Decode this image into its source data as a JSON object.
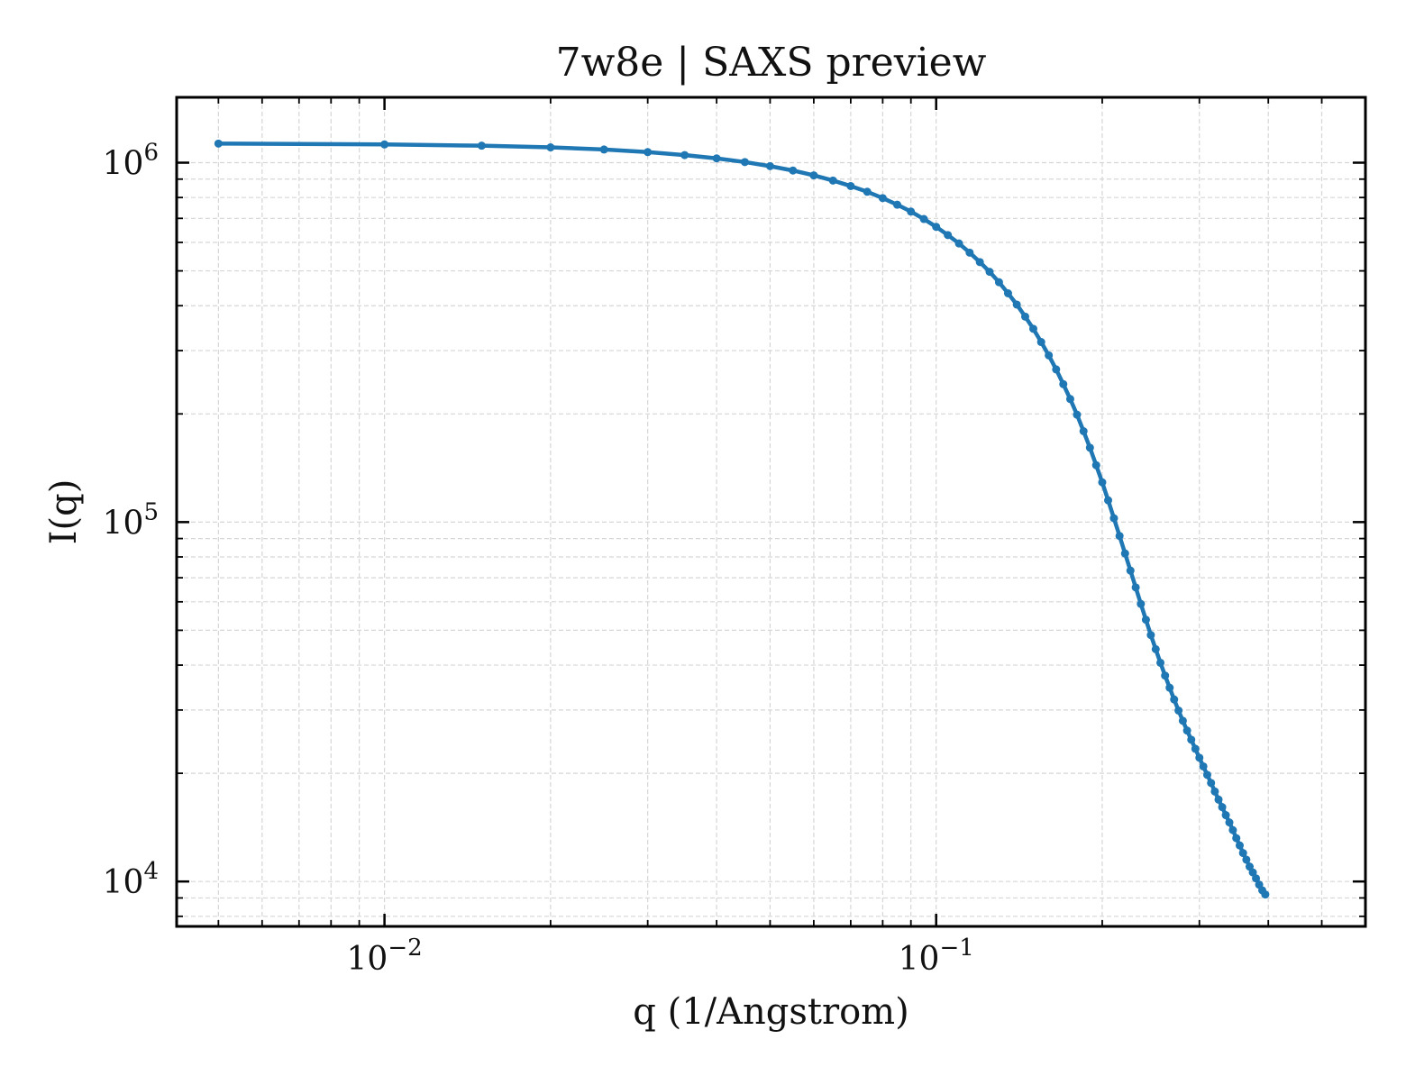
{
  "chart_data": {
    "type": "line",
    "title": "7w8e | SAXS preview",
    "xlabel": "q (1/Angstrom)",
    "ylabel": "I(q)",
    "x_scale": "log",
    "y_scale": "log",
    "xlim": [
      0.0042,
      0.6
    ],
    "ylim": [
      7500,
      1520000
    ],
    "grid": true,
    "legend": "none",
    "x_ticks": [
      {
        "value": 0.01,
        "base": "10",
        "exp": "−2"
      },
      {
        "value": 0.1,
        "base": "10",
        "exp": "−1"
      }
    ],
    "y_ticks": [
      {
        "value": 1000000,
        "base": "10",
        "exp": "6"
      },
      {
        "value": 100000,
        "base": "10",
        "exp": "5"
      },
      {
        "value": 10000,
        "base": "10",
        "exp": "4"
      }
    ],
    "series": [
      {
        "color": "#1f77b4",
        "points": [
          [
            0.005,
            1130000
          ],
          [
            0.01,
            1124000
          ],
          [
            0.015,
            1115000
          ],
          [
            0.02,
            1103000
          ],
          [
            0.025,
            1088000
          ],
          [
            0.03,
            1070000
          ],
          [
            0.035,
            1050000
          ],
          [
            0.04,
            1028000
          ],
          [
            0.045,
            1004000
          ],
          [
            0.05,
            978000
          ],
          [
            0.055,
            951000
          ],
          [
            0.06,
            922000
          ],
          [
            0.065,
            892000
          ],
          [
            0.07,
            861000
          ],
          [
            0.075,
            830000
          ],
          [
            0.08,
            797000
          ],
          [
            0.085,
            764000
          ],
          [
            0.09,
            731000
          ],
          [
            0.095,
            697000
          ],
          [
            0.1,
            663000
          ],
          [
            0.105,
            629000
          ],
          [
            0.11,
            596000
          ],
          [
            0.115,
            562000
          ],
          [
            0.12,
            529000
          ],
          [
            0.125,
            497000
          ],
          [
            0.13,
            465000
          ],
          [
            0.135,
            433000
          ],
          [
            0.14,
            403000
          ],
          [
            0.145,
            373000
          ],
          [
            0.15,
            345000
          ],
          [
            0.155,
            317000
          ],
          [
            0.16,
            291000
          ],
          [
            0.165,
            266000
          ],
          [
            0.17,
            242000
          ],
          [
            0.175,
            220000
          ],
          [
            0.18,
            199000
          ],
          [
            0.185,
            179000
          ],
          [
            0.19,
            161000
          ],
          [
            0.195,
            144000
          ],
          [
            0.2,
            129000
          ],
          [
            0.205,
            115000
          ],
          [
            0.21,
            102500
          ],
          [
            0.215,
            91500
          ],
          [
            0.22,
            81800
          ],
          [
            0.225,
            73300
          ],
          [
            0.23,
            65800
          ],
          [
            0.235,
            59200
          ],
          [
            0.24,
            53500
          ],
          [
            0.245,
            48500
          ],
          [
            0.25,
            44300
          ],
          [
            0.255,
            40600
          ],
          [
            0.26,
            37400
          ],
          [
            0.265,
            34600
          ],
          [
            0.27,
            32100
          ],
          [
            0.275,
            29900
          ],
          [
            0.28,
            28000
          ],
          [
            0.285,
            26300
          ],
          [
            0.29,
            24800
          ],
          [
            0.295,
            23400
          ],
          [
            0.3,
            22100
          ],
          [
            0.305,
            20900
          ],
          [
            0.31,
            19800
          ],
          [
            0.315,
            18800
          ],
          [
            0.32,
            17800
          ],
          [
            0.325,
            16900
          ],
          [
            0.33,
            16100
          ],
          [
            0.335,
            15300
          ],
          [
            0.34,
            14600
          ],
          [
            0.345,
            13900
          ],
          [
            0.35,
            13200
          ],
          [
            0.355,
            12600
          ],
          [
            0.36,
            12000
          ],
          [
            0.365,
            11500
          ],
          [
            0.37,
            11000
          ],
          [
            0.375,
            10600
          ],
          [
            0.38,
            10200
          ],
          [
            0.385,
            9800
          ],
          [
            0.39,
            9450
          ],
          [
            0.395,
            9200
          ]
        ]
      }
    ]
  }
}
